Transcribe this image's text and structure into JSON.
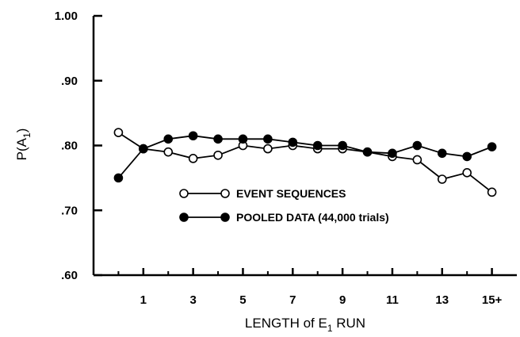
{
  "chart_data": {
    "type": "line",
    "xlabel": "LENGTH of E",
    "xlabel_sub": "1",
    "xlabel_suffix": " RUN",
    "ylabel": "P(A",
    "ylabel_sub": "1",
    "ylabel_suffix": ")",
    "ylim": [
      0.6,
      1.0
    ],
    "y_ticks": [
      {
        "value": 0.6,
        "label": ".60"
      },
      {
        "value": 0.7,
        "label": ".70"
      },
      {
        "value": 0.8,
        "label": ".80"
      },
      {
        "value": 0.9,
        "label": ".90"
      },
      {
        "value": 1.0,
        "label": "1.00"
      }
    ],
    "xlim": [
      -1,
      16
    ],
    "x_ticks": [
      {
        "value": 1,
        "label": "1"
      },
      {
        "value": 3,
        "label": "3"
      },
      {
        "value": 5,
        "label": "5"
      },
      {
        "value": 7,
        "label": "7"
      },
      {
        "value": 9,
        "label": "9"
      },
      {
        "value": 11,
        "label": "11"
      },
      {
        "value": 13,
        "label": "13"
      },
      {
        "value": 15,
        "label": "15+"
      }
    ],
    "x_minor_ticks": [
      0,
      2,
      4,
      6,
      8,
      10,
      12,
      14
    ],
    "grid": false,
    "legend_position": "center",
    "x": [
      0,
      1,
      2,
      3,
      4,
      5,
      6,
      7,
      8,
      9,
      10,
      11,
      12,
      13,
      14,
      15
    ],
    "series": [
      {
        "name": "EVENT SEQUENCES",
        "marker": "open-circle",
        "values": [
          0.82,
          0.795,
          0.79,
          0.78,
          0.785,
          0.8,
          0.795,
          0.8,
          0.795,
          0.795,
          0.79,
          0.783,
          0.778,
          0.748,
          0.758,
          0.728
        ]
      },
      {
        "name": "POOLED DATA (44,000 trials)",
        "marker": "filled-circle",
        "values": [
          0.75,
          0.795,
          0.81,
          0.815,
          0.81,
          0.81,
          0.81,
          0.805,
          0.8,
          0.8,
          0.79,
          0.788,
          0.8,
          0.788,
          0.783,
          0.798
        ]
      }
    ]
  }
}
